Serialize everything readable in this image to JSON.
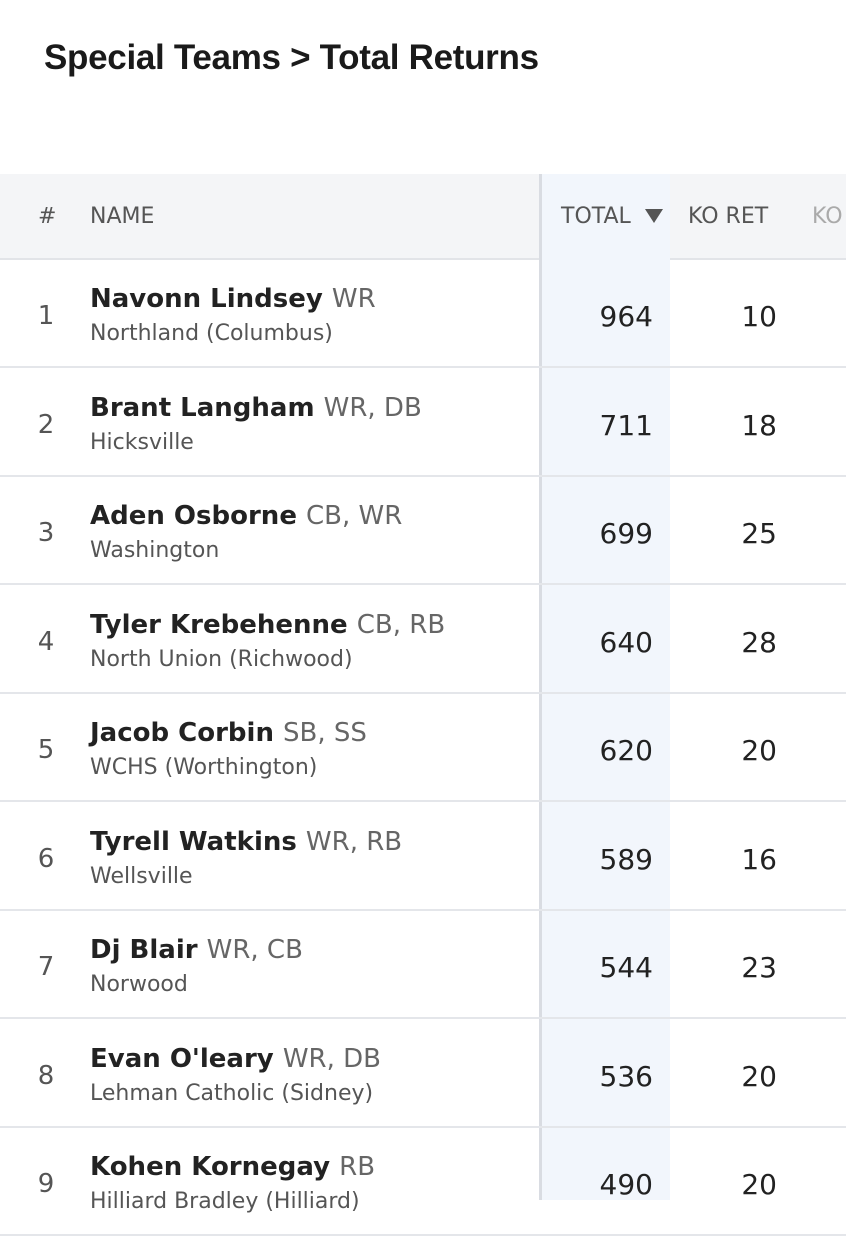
{
  "header": {
    "title": "Special Teams > Total Returns"
  },
  "table": {
    "columns": [
      "#",
      "NAME",
      "TOTAL",
      "KO RET",
      "KO"
    ],
    "rows": [
      {
        "rank": "1",
        "name": "Navonn Lindsey",
        "positions": "WR",
        "school": "Northland (Columbus)",
        "total": "964",
        "ko_ret": "10"
      },
      {
        "rank": "2",
        "name": "Brant Langham",
        "positions": "WR, DB",
        "school": "Hicksville",
        "total": "711",
        "ko_ret": "18"
      },
      {
        "rank": "3",
        "name": "Aden Osborne",
        "positions": "CB, WR",
        "school": "Washington",
        "total": "699",
        "ko_ret": "25"
      },
      {
        "rank": "4",
        "name": "Tyler Krebehenne",
        "positions": "CB, RB",
        "school": "North Union (Richwood)",
        "total": "640",
        "ko_ret": "28"
      },
      {
        "rank": "5",
        "name": "Jacob Corbin",
        "positions": "SB, SS",
        "school": "WCHS (Worthington)",
        "total": "620",
        "ko_ret": "20"
      },
      {
        "rank": "6",
        "name": "Tyrell Watkins",
        "positions": "WR, RB",
        "school": "Wellsville",
        "total": "589",
        "ko_ret": "16"
      },
      {
        "rank": "7",
        "name": "Dj Blair",
        "positions": "WR, CB",
        "school": "Norwood",
        "total": "544",
        "ko_ret": "23"
      },
      {
        "rank": "8",
        "name": "Evan O'leary",
        "positions": "WR, DB",
        "school": "Lehman Catholic (Sidney)",
        "total": "536",
        "ko_ret": "20"
      },
      {
        "rank": "9",
        "name": "Kohen Kornegay",
        "positions": "RB",
        "school": "Hilliard Bradley (Hilliard)",
        "total": "490",
        "ko_ret": "20"
      }
    ]
  }
}
